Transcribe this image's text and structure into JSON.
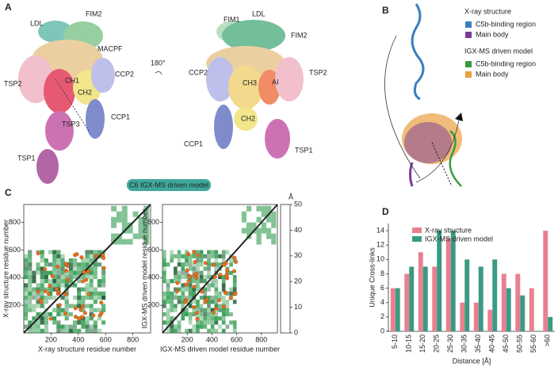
{
  "panel_a": {
    "label": "A",
    "left_labels": [
      "LDL",
      "FIM2",
      "MACPF",
      "TSP2",
      "CH1",
      "CH2",
      "CCP2",
      "TSP3",
      "CCP1",
      "TSP1"
    ],
    "right_labels": [
      "FIM1",
      "LDL",
      "FIM2",
      "CCP2",
      "CH3",
      "AI",
      "TSP2",
      "CCP1",
      "CH2",
      "TSP1"
    ],
    "rotation": "180°",
    "model_tag": "C6 IGX-MS driven model"
  },
  "panel_b": {
    "label": "B",
    "xray_title": "X-ray structure",
    "xray_items": [
      "C5b-binding region",
      "Main body"
    ],
    "igx_title": "IGX-MS driven model",
    "igx_items": [
      "C5b-binding region",
      "Main body"
    ]
  },
  "panel_c": {
    "label": "C",
    "maps": [
      {
        "xlabel": "X-ray structure residue number",
        "ylabel": "X-ray structure residue number",
        "lim": [
          0,
          930
        ],
        "xticks": [
          200,
          400,
          600,
          800
        ],
        "yticks": [
          200,
          400,
          600,
          800
        ]
      },
      {
        "xlabel": "IGX-MS driven model residue number",
        "ylabel": "IGX-MS driven model residue number",
        "lim": [
          0,
          930
        ],
        "xticks": [
          200,
          400,
          600,
          800
        ],
        "yticks": [
          200,
          400,
          600,
          800
        ]
      }
    ],
    "colorbar": {
      "unit": "Å",
      "lim": [
        0,
        50
      ],
      "ticks": [
        0,
        10,
        20,
        30,
        40,
        50
      ]
    }
  },
  "panel_d": {
    "label": "D"
  },
  "chart_data": {
    "type": "bar",
    "xlabel": "Distance [Å]",
    "ylabel": "Unique Cross-links",
    "categories": [
      "5-10",
      "10-15",
      "15-20",
      "20-25",
      "25-30",
      "30-35",
      "35-40",
      "40-45",
      "45-50",
      "50-55",
      "55-60",
      ">60"
    ],
    "series": [
      {
        "name": "X-ray structure",
        "color": "#e8808f",
        "values": [
          6,
          8,
          11,
          9,
          13,
          4,
          4,
          3,
          8,
          8,
          6,
          14
        ]
      },
      {
        "name": "IGX-MS driven model",
        "color": "#3b9a84",
        "values": [
          6,
          9,
          9,
          14,
          14,
          10,
          9,
          10,
          6,
          5,
          0,
          2
        ]
      }
    ],
    "ylim": [
      0,
      15
    ],
    "yticks": [
      0,
      2,
      4,
      6,
      8,
      10,
      12,
      14
    ]
  }
}
